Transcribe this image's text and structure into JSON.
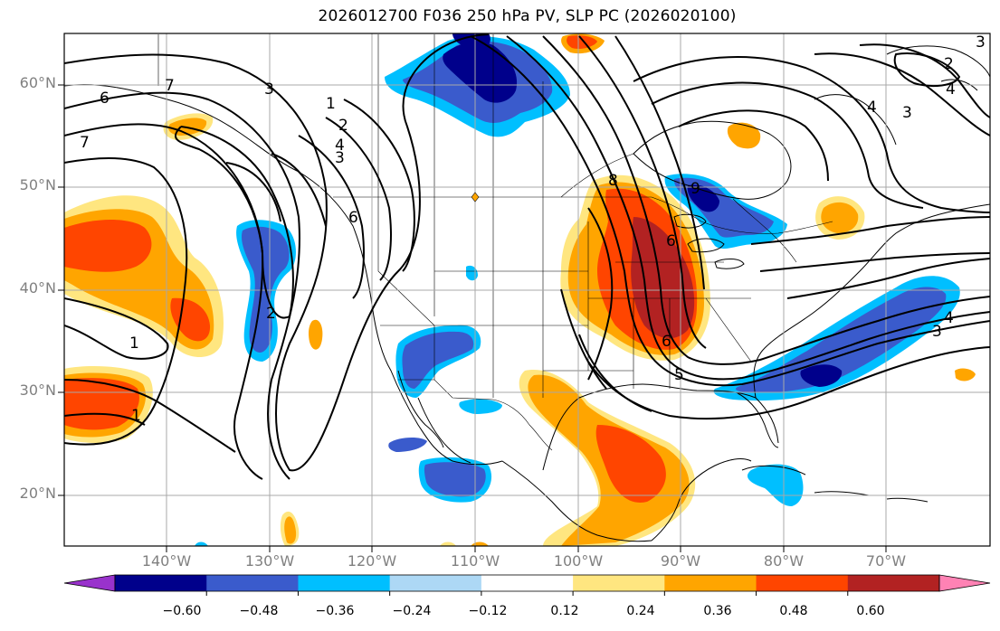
{
  "title": "2026012700 F036 250 hPa PV, SLP PC (2026020100)",
  "lat_labels": [
    "60°N",
    "50°N",
    "40°N",
    "30°N",
    "20°N"
  ],
  "lon_labels": [
    "140°W",
    "130°W",
    "120°W",
    "110°W",
    "100°W",
    "90°W",
    "80°W",
    "70°W"
  ],
  "contour_labels": [
    "6",
    "7",
    "7",
    "3",
    "1",
    "2",
    "4",
    "3",
    "6",
    "2",
    "1",
    "1",
    "8",
    "9",
    "6",
    "5",
    "6",
    "4",
    "3",
    "4",
    "3",
    "2",
    "3",
    "4"
  ],
  "colorbar": {
    "ticks": [
      "−0.60",
      "−0.48",
      "−0.36",
      "−0.24",
      "−0.12",
      "0.12",
      "0.24",
      "0.36",
      "0.48",
      "0.60"
    ],
    "colors": [
      "#9932cc",
      "#00008b",
      "#3a5bcc",
      "#00bfff",
      "#add8f5",
      "#ffffff",
      "#ffe680",
      "#ffa500",
      "#ff4500",
      "#b22222",
      "#ff82b4"
    ]
  }
}
